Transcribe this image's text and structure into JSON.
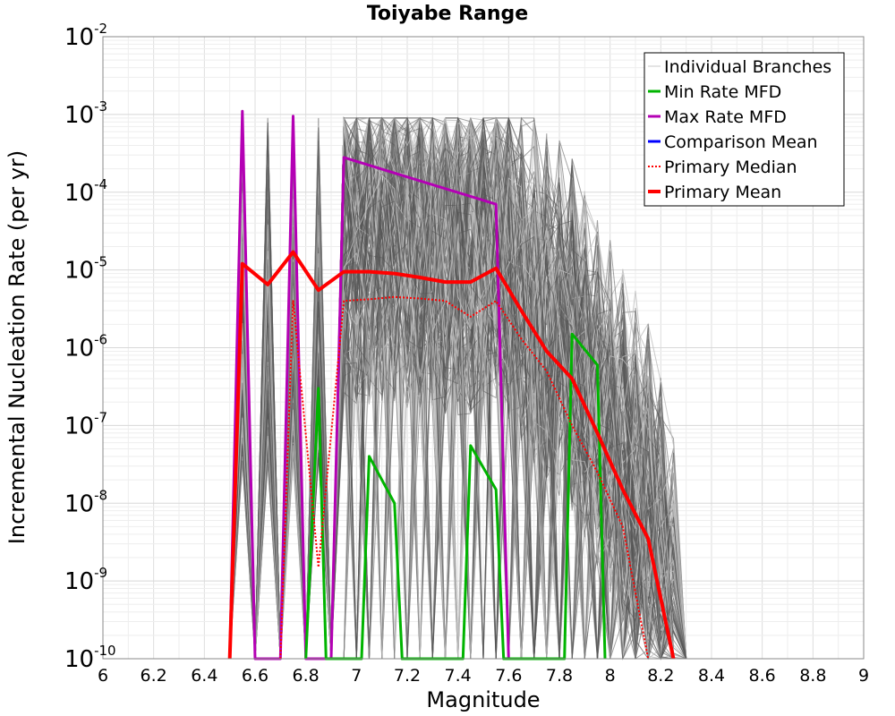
{
  "chart_data": {
    "type": "line",
    "title": "Toiyabe Range",
    "xlabel": "Magnitude",
    "ylabel": "Incremental Nucleation Rate (per yr)",
    "xlim": [
      6,
      9
    ],
    "ylim": [
      1e-10,
      0.01
    ],
    "y_scale": "log",
    "grid": true,
    "legend_position": "top-right",
    "x_ticks": [
      "6",
      "6.2",
      "6.4",
      "6.6",
      "6.8",
      "7",
      "7.2",
      "7.4",
      "7.6",
      "7.8",
      "8",
      "8.2",
      "8.4",
      "8.6",
      "8.8",
      "9"
    ],
    "y_ticks": [
      {
        "base": "10",
        "exp": "-10"
      },
      {
        "base": "10",
        "exp": "-9"
      },
      {
        "base": "10",
        "exp": "-8"
      },
      {
        "base": "10",
        "exp": "-7"
      },
      {
        "base": "10",
        "exp": "-6"
      },
      {
        "base": "10",
        "exp": "-5"
      },
      {
        "base": "10",
        "exp": "-4"
      },
      {
        "base": "10",
        "exp": "-3"
      },
      {
        "base": "10",
        "exp": "-2"
      }
    ],
    "legend": [
      {
        "label": "Individual Branches",
        "color": "#c8c8c8",
        "style": "solid-thin"
      },
      {
        "label": "Min Rate MFD",
        "color": "#00b400",
        "style": "solid"
      },
      {
        "label": "Max Rate MFD",
        "color": "#b400b4",
        "style": "solid"
      },
      {
        "label": "Comparison Mean",
        "color": "#0000ff",
        "style": "solid"
      },
      {
        "label": "Primary Median",
        "color": "#ff0000",
        "style": "dotted"
      },
      {
        "label": "Primary Mean",
        "color": "#ff0000",
        "style": "solid-thick"
      }
    ],
    "series": [
      {
        "name": "Max Rate MFD",
        "color": "#b400b4",
        "x": [
          6.5,
          6.55,
          6.6,
          6.7,
          6.75,
          6.8,
          6.9,
          6.95,
          7.55,
          7.6
        ],
        "y": [
          1e-10,
          0.0011,
          1e-10,
          1e-10,
          0.00095,
          1e-10,
          1e-10,
          0.00028,
          7e-05,
          1e-10
        ]
      },
      {
        "name": "Min Rate MFD",
        "color": "#00b400",
        "x": [
          6.8,
          6.85,
          6.88,
          7.02,
          7.05,
          7.15,
          7.18,
          7.42,
          7.45,
          7.55,
          7.58,
          7.82,
          7.85,
          7.95,
          7.98
        ],
        "y": [
          1e-10,
          3e-07,
          1e-10,
          1e-10,
          4e-08,
          1e-08,
          1e-10,
          1e-10,
          5.5e-08,
          1.5e-08,
          1e-10,
          1e-10,
          1.5e-06,
          6e-07,
          1e-10
        ]
      },
      {
        "name": "Primary Mean",
        "color": "#ff0000",
        "x": [
          6.5,
          6.55,
          6.65,
          6.75,
          6.85,
          6.95,
          7.05,
          7.15,
          7.25,
          7.35,
          7.45,
          7.55,
          7.65,
          7.75,
          7.85,
          7.95,
          8.05,
          8.15,
          8.25
        ],
        "y": [
          1e-10,
          1.2e-05,
          6.5e-06,
          1.7e-05,
          5.5e-06,
          9.5e-06,
          9.5e-06,
          9e-06,
          8e-06,
          7e-06,
          7e-06,
          1.05e-05,
          3e-06,
          9e-07,
          4e-07,
          8e-08,
          1.5e-08,
          3.5e-09,
          1e-10
        ]
      },
      {
        "name": "Primary Median",
        "color": "#ff0000",
        "x": [
          6.7,
          6.75,
          6.85,
          6.95,
          7.05,
          7.15,
          7.25,
          7.35,
          7.45,
          7.55,
          7.65,
          7.75,
          7.85,
          7.95,
          8.05,
          8.15
        ],
        "y": [
          1e-10,
          4e-06,
          1.5e-09,
          4e-06,
          4.2e-06,
          4.5e-06,
          4.3e-06,
          4e-06,
          2.5e-06,
          4e-06,
          1.3e-06,
          5e-07,
          1e-07,
          2.5e-08,
          5e-09,
          1e-10
        ]
      }
    ]
  }
}
